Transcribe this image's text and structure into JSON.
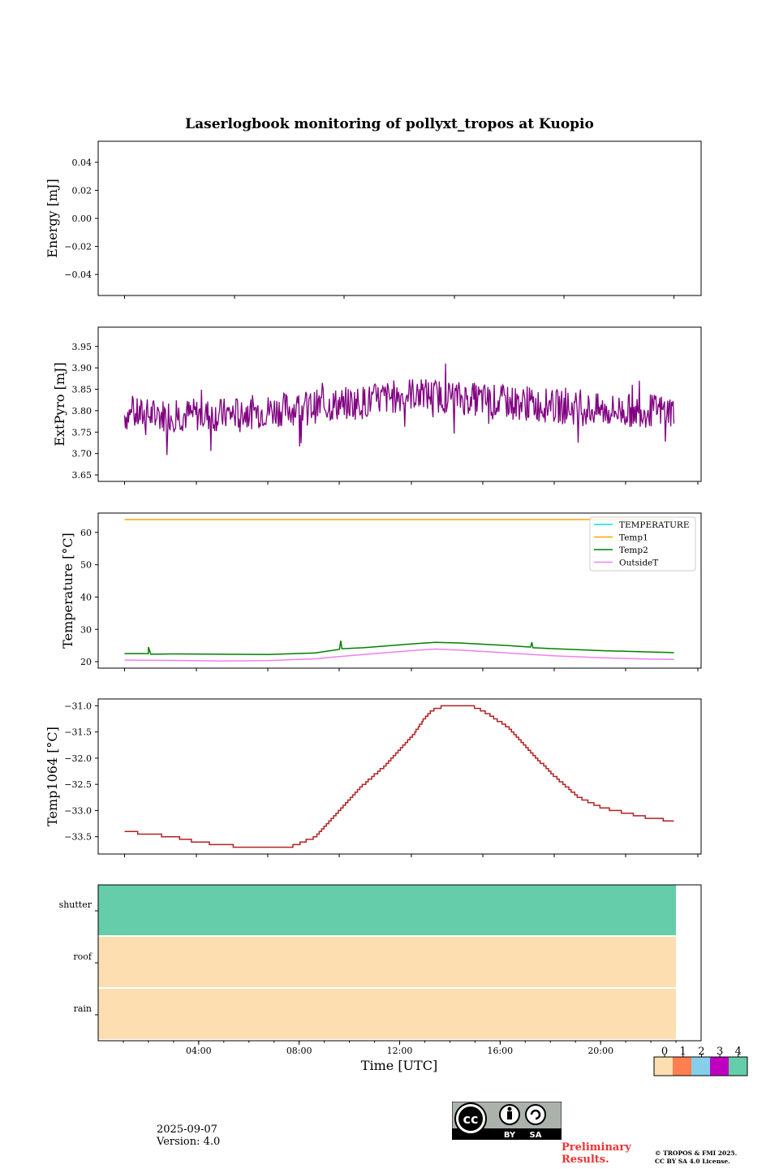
{
  "title": "Laserlogbook monitoring of pollyxt_tropos at Kuopio",
  "footer": {
    "date": "2025-09-07",
    "version": "Version: 4.0",
    "preliminary_line1": "Preliminary",
    "preliminary_line2": "Results.",
    "copyright_line1": "© TROPOS & FMI 2025.",
    "copyright_line2": "CC BY SA 4.0 License."
  },
  "license_badge": {
    "cc": "cc",
    "by": "BY",
    "sa": "SA"
  },
  "chart_data": [
    {
      "type": "line",
      "name": "energy",
      "ylabel": "Energy [mJ]",
      "ylim": [
        -0.055,
        0.055
      ],
      "yticks": [
        0.04,
        0.02,
        0.0,
        -0.02,
        -0.04
      ],
      "ytick_labels": [
        "0.04",
        "0.02",
        "0.00",
        "−0.02",
        "−0.04"
      ],
      "series": []
    },
    {
      "type": "line",
      "name": "extpyro",
      "ylabel": "ExtPyro [mJ]",
      "ylim": [
        3.635,
        3.995
      ],
      "yticks": [
        3.95,
        3.9,
        3.85,
        3.8,
        3.75,
        3.7,
        3.65
      ],
      "ytick_labels": [
        "3.95",
        "3.90",
        "3.85",
        "3.80",
        "3.75",
        "3.70",
        "3.65"
      ],
      "series": [
        {
          "name": "ExtPyro",
          "color": "#800080",
          "x_range_h": [
            0.0,
            23.0
          ],
          "baseline": [
            [
              0,
              3.79
            ],
            [
              4,
              3.79
            ],
            [
              8,
              3.81
            ],
            [
              10,
              3.82
            ],
            [
              12,
              3.84
            ],
            [
              14,
              3.83
            ],
            [
              16,
              3.82
            ],
            [
              18,
              3.81
            ],
            [
              20,
              3.8
            ],
            [
              23,
              3.8
            ]
          ],
          "noise_amplitude": 0.05
        }
      ]
    },
    {
      "type": "line",
      "name": "temperature",
      "ylabel": "Temperature [°C]",
      "ylim": [
        18,
        66
      ],
      "yticks": [
        60,
        50,
        40,
        30,
        20
      ],
      "ytick_labels": [
        "60",
        "50",
        "40",
        "30",
        "20"
      ],
      "legend": [
        "TEMPERATURE",
        "Temp1",
        "Temp2",
        "OutsideT"
      ],
      "legend_placement": "top-right",
      "series": [
        {
          "name": "TEMPERATURE",
          "color": "#00e5ee",
          "points": []
        },
        {
          "name": "Temp1",
          "color": "#ffa500",
          "points": [
            [
              0,
              64
            ],
            [
              23,
              64
            ]
          ]
        },
        {
          "name": "Temp2",
          "color": "#008000",
          "points": [
            [
              0,
              22.5
            ],
            [
              1,
              22.5
            ],
            [
              1.0,
              24.5
            ],
            [
              1.1,
              22.3
            ],
            [
              2,
              22.4
            ],
            [
              4,
              22.3
            ],
            [
              6,
              22.2
            ],
            [
              8,
              22.7
            ],
            [
              9.0,
              23.8
            ],
            [
              9.05,
              26.5
            ],
            [
              9.1,
              24.0
            ],
            [
              10,
              24.3
            ],
            [
              12,
              25.5
            ],
            [
              13,
              26.0
            ],
            [
              14,
              25.8
            ],
            [
              16,
              25.0
            ],
            [
              17,
              24.5
            ],
            [
              17.05,
              26.0
            ],
            [
              17.1,
              24.3
            ],
            [
              18,
              24.0
            ],
            [
              20,
              23.4
            ],
            [
              22,
              23.0
            ],
            [
              23,
              22.8
            ]
          ]
        },
        {
          "name": "OutsideT",
          "color": "#ee82ee",
          "points": [
            [
              0,
              20.5
            ],
            [
              2,
              20.4
            ],
            [
              4,
              20.2
            ],
            [
              6,
              20.3
            ],
            [
              8,
              20.9
            ],
            [
              9,
              21.6
            ],
            [
              10,
              22.2
            ],
            [
              12,
              23.4
            ],
            [
              13,
              23.9
            ],
            [
              14,
              23.6
            ],
            [
              16,
              22.7
            ],
            [
              18,
              21.8
            ],
            [
              20,
              21.2
            ],
            [
              22,
              20.8
            ],
            [
              23,
              20.7
            ]
          ]
        }
      ]
    },
    {
      "type": "line",
      "name": "temp1064",
      "ylabel": "Temp1064 [°C]",
      "ylim": [
        -33.83,
        -30.87
      ],
      "yticks": [
        -31.0,
        -31.5,
        -32.0,
        -32.5,
        -33.0,
        -33.5
      ],
      "ytick_labels": [
        "−31.0",
        "−31.5",
        "−32.0",
        "−32.5",
        "−33.0",
        "−33.5"
      ],
      "series": [
        {
          "name": "Temp1064",
          "color": "#b22222",
          "step": 0.1,
          "points": [
            [
              0,
              -33.4
            ],
            [
              1,
              -33.45
            ],
            [
              2,
              -33.5
            ],
            [
              3,
              -33.6
            ],
            [
              4,
              -33.65
            ],
            [
              5,
              -33.7
            ],
            [
              6,
              -33.7
            ],
            [
              7,
              -33.68
            ],
            [
              8,
              -33.5
            ],
            [
              9,
              -33.0
            ],
            [
              10,
              -32.5
            ],
            [
              11,
              -32.1
            ],
            [
              12,
              -31.6
            ],
            [
              12.6,
              -31.2
            ],
            [
              13,
              -31.05
            ],
            [
              13.5,
              -31.0
            ],
            [
              14.5,
              -31.0
            ],
            [
              15,
              -31.1
            ],
            [
              16,
              -31.4
            ],
            [
              17,
              -31.9
            ],
            [
              18,
              -32.35
            ],
            [
              19,
              -32.75
            ],
            [
              20,
              -32.95
            ],
            [
              21,
              -33.05
            ],
            [
              22,
              -33.15
            ],
            [
              23,
              -33.2
            ]
          ]
        }
      ]
    },
    {
      "type": "heatmap",
      "name": "status",
      "categories": [
        "shutter",
        "roof",
        "rain"
      ],
      "xlabel": "Time [UTC]",
      "xticks_h": [
        4,
        8,
        12,
        16,
        20
      ],
      "xtick_labels": [
        "04:00",
        "08:00",
        "12:00",
        "16:00",
        "20:00"
      ],
      "x_range_h": [
        0,
        24
      ],
      "data_end_h": 23.0,
      "values": [
        4,
        0,
        0
      ],
      "colorbar": {
        "ticks": [
          "0",
          "1",
          "2",
          "3",
          "4"
        ],
        "colors": [
          "#fddeb0",
          "#ff7f50",
          "#87ceeb",
          "#c000c0",
          "#66cdaa"
        ]
      }
    }
  ]
}
